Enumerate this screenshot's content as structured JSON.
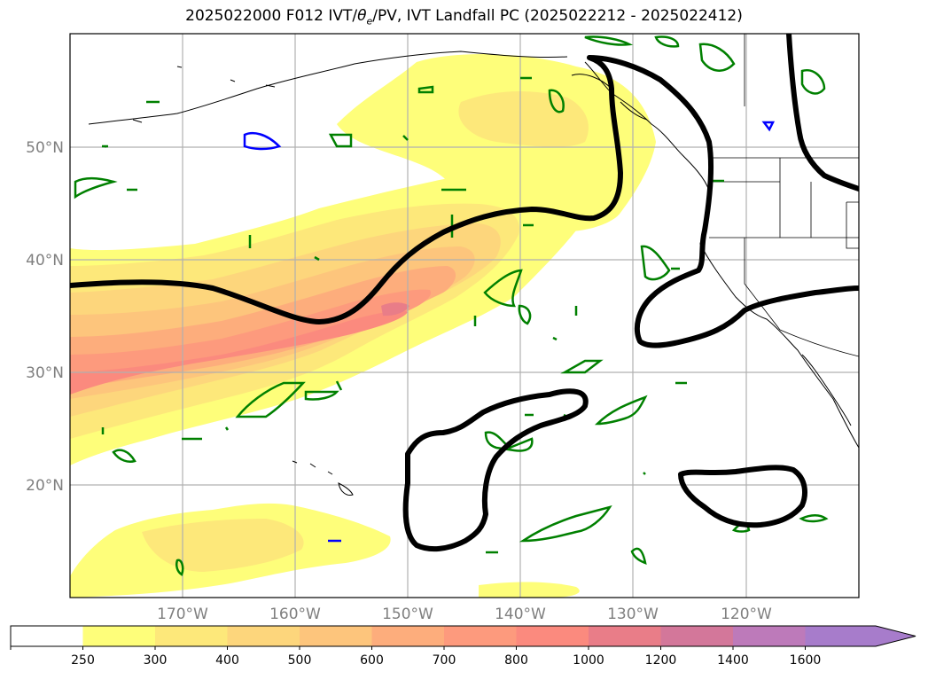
{
  "figure": {
    "title_prefix": "2025022000 F012 IVT/",
    "title_theta": "θ",
    "title_sub": "e",
    "title_suffix": "/PV, IVT Landfall PC (2025022212 - 2025022412)"
  },
  "map": {
    "projection": "PlateCarree",
    "extent": {
      "lon_min": -180,
      "lon_max": -110,
      "lat_min": 10,
      "lat_max": 60
    },
    "gridlines": true,
    "lon_ticks": [
      {
        "value": -170,
        "label": "170°W"
      },
      {
        "value": -160,
        "label": "160°W"
      },
      {
        "value": -150,
        "label": "150°W"
      },
      {
        "value": -140,
        "label": "140°W"
      },
      {
        "value": -130,
        "label": "130°W"
      },
      {
        "value": -120,
        "label": "120°W"
      }
    ],
    "lat_ticks": [
      {
        "value": 20,
        "label": "20°N"
      },
      {
        "value": 30,
        "label": "30°N"
      },
      {
        "value": 40,
        "label": "40°N"
      },
      {
        "value": 50,
        "label": "50°N"
      }
    ],
    "colors": {
      "pc_contour": "#000000",
      "theta_e_contour": "#008000",
      "pv_contour": "#0000ff",
      "coast": "#000000"
    }
  },
  "colorbar": {
    "levels": [
      "250",
      "300",
      "400",
      "500",
      "600",
      "700",
      "800",
      "1000",
      "1200",
      "1400",
      "1600"
    ],
    "colors": [
      "#ffffff",
      "#fefe7a",
      "#fde87a",
      "#fdd67c",
      "#fdc57c",
      "#fdad7c",
      "#fd9a7d",
      "#fb8a7e",
      "#e97d88",
      "#d3779a",
      "#bd7aba",
      "#a77ccb"
    ],
    "extend": "max"
  }
}
